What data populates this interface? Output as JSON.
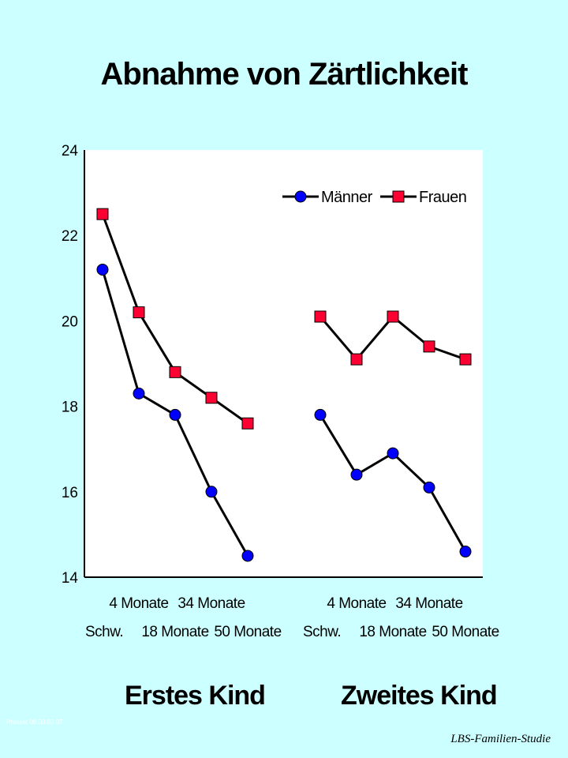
{
  "slide": {
    "title": "Abnahme von Zärtlichkeit",
    "footnote": "Prasset 08.03.03 07",
    "source": "LBS-Familien-Studie",
    "background": "#ccffff"
  },
  "chart_data": {
    "type": "line",
    "title": "Abnahme von Zärtlichkeit",
    "ylim": [
      14,
      24
    ],
    "yticks": [
      14,
      16,
      18,
      20,
      22,
      24
    ],
    "grid": false,
    "legend_position": "top-right",
    "groups": [
      {
        "label": "Erstes Kind",
        "categories": [
          "Schw.",
          "4 Monate",
          "18 Monate",
          "34 Monate",
          "50 Monate"
        ],
        "series": [
          {
            "name": "Männer",
            "marker": "circle",
            "color": "#0000ff",
            "values": [
              21.2,
              18.3,
              17.8,
              16.0,
              14.5
            ]
          },
          {
            "name": "Frauen",
            "marker": "square",
            "color": "#ff0033",
            "values": [
              22.5,
              20.2,
              18.8,
              18.2,
              17.6
            ]
          }
        ]
      },
      {
        "label": "Zweites Kind",
        "categories": [
          "Schw.",
          "4 Monate",
          "18 Monate",
          "34 Monate",
          "50 Monate"
        ],
        "series": [
          {
            "name": "Männer",
            "marker": "circle",
            "color": "#0000ff",
            "values": [
              17.8,
              16.4,
              16.9,
              16.1,
              14.6
            ]
          },
          {
            "name": "Frauen",
            "marker": "square",
            "color": "#ff0033",
            "values": [
              20.1,
              19.1,
              20.1,
              19.4,
              19.1
            ]
          }
        ]
      }
    ]
  }
}
